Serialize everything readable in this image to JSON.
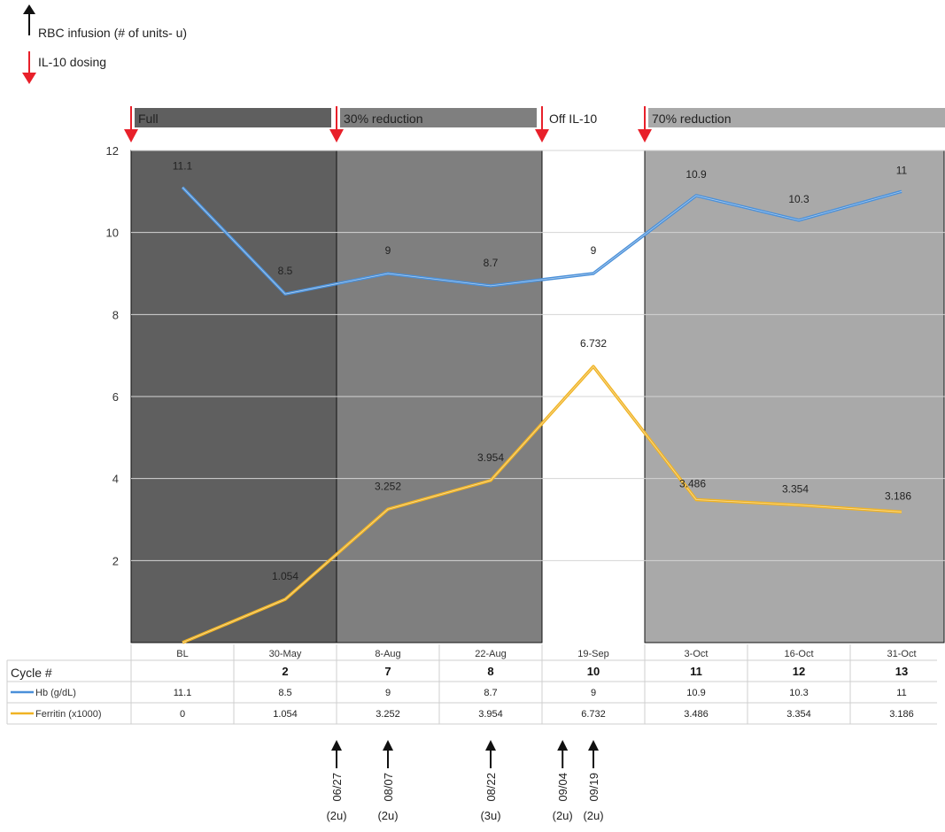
{
  "legend_top": {
    "rbc_label": "RBC infusion  (# of units- u)",
    "dosing_label": "IL-10 dosing"
  },
  "dosing_phases": [
    {
      "label": "Full",
      "color": "#5f5f5f"
    },
    {
      "label": "30% reduction",
      "color": "#7f7f7f"
    },
    {
      "label": "Off IL-10",
      "color": ""
    },
    {
      "label": "70% reduction",
      "color": "#a9a9a9"
    }
  ],
  "colors": {
    "hb": "#4a90d9",
    "ferritin": "#f0b323",
    "arrow_red": "#e8202a",
    "arrow_black": "#111111"
  },
  "chart_data": {
    "type": "line",
    "categories": [
      "BL",
      "30-May",
      "8-Aug",
      "22-Aug",
      "19-Sep",
      "3-Oct",
      "16-Oct",
      "31-Oct"
    ],
    "cycles": [
      "",
      "2",
      "7",
      "8",
      "10",
      "11",
      "12",
      "13"
    ],
    "ylim": [
      0,
      12
    ],
    "yticks": [
      2,
      4,
      6,
      8,
      10,
      12
    ],
    "series": [
      {
        "name": "Hb (g/dL)",
        "values": [
          11.1,
          8.5,
          9,
          8.7,
          9,
          10.9,
          10.3,
          11
        ],
        "labels": [
          "11.1",
          "8.5",
          "9",
          "8.7",
          "9",
          "10.9",
          "10.3",
          "11"
        ]
      },
      {
        "name": "Ferritin (x1000)",
        "values": [
          0,
          1.054,
          3.252,
          3.954,
          6.732,
          3.486,
          3.354,
          3.186
        ],
        "labels": [
          "0",
          "1.054",
          "3.252",
          "3.954",
          "6.732",
          "3.486",
          "3.354",
          "3.186"
        ]
      }
    ],
    "shaded_periods": [
      {
        "phase": "Full",
        "from": -0.5,
        "to": 1.5
      },
      {
        "phase": "30% reduction",
        "from": 1.5,
        "to": 3.5
      },
      {
        "phase": "70% reduction",
        "from": 4.5,
        "to": 7.5
      }
    ],
    "dosing_changes": [
      -0.5,
      1.5,
      3.5,
      4.5
    ],
    "table_header": "Cycle #",
    "rbc_infusions": [
      {
        "date": "06/27",
        "units": "(2u)",
        "at": 1.5
      },
      {
        "date": "08/07",
        "units": "(2u)",
        "at": 2
      },
      {
        "date": "08/22",
        "units": "(3u)",
        "at": 3
      },
      {
        "date": "09/04",
        "units": "(2u)",
        "at": 3.7
      },
      {
        "date": "09/19",
        "units": "(2u)",
        "at": 4
      }
    ]
  }
}
